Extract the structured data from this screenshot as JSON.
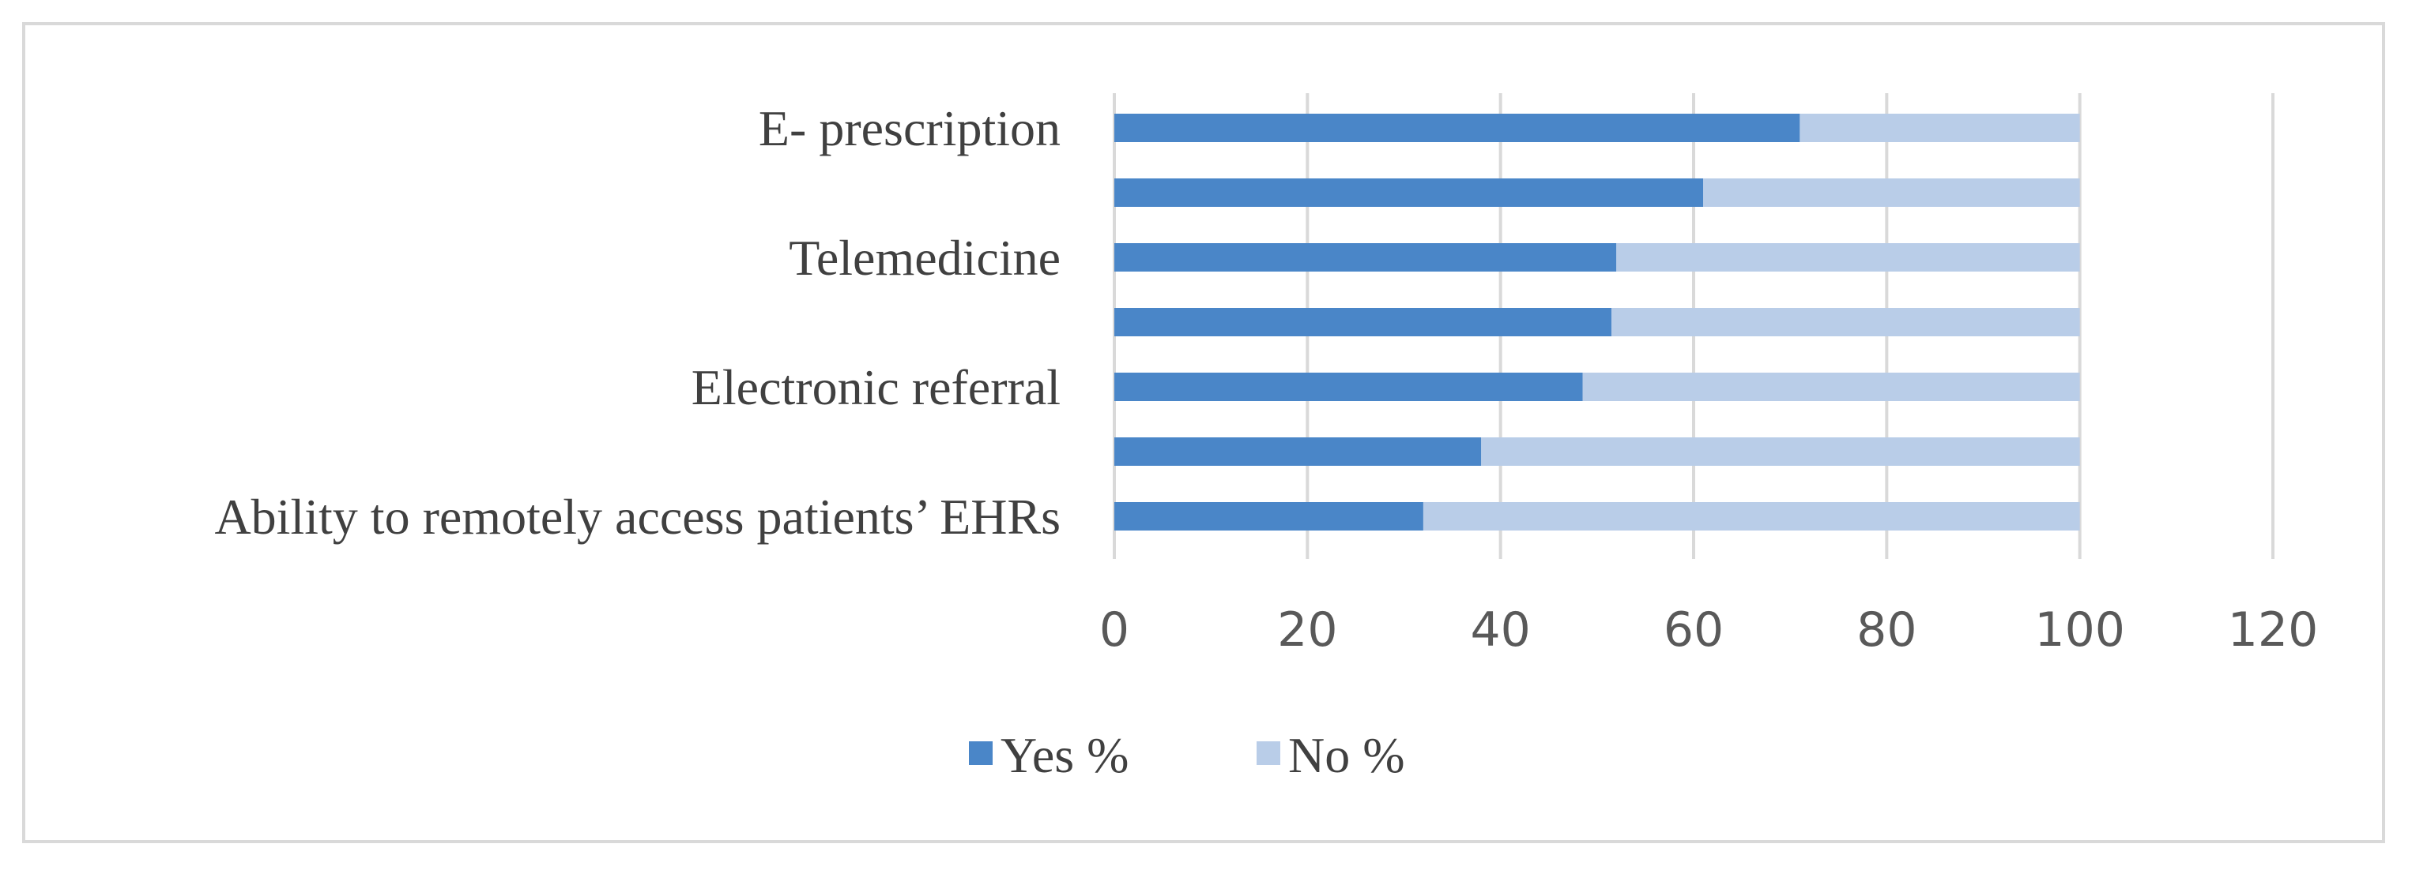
{
  "chart_data": {
    "type": "bar",
    "orientation": "horizontal",
    "stacked": true,
    "categories": [
      "E- prescription",
      "",
      "Telemedicine",
      "",
      "Electronic referral",
      "",
      "Ability to remotely access patients’ EHRs"
    ],
    "series": [
      {
        "name": "Yes %",
        "color": "#4a86c8",
        "values": [
          71,
          61,
          52,
          51.5,
          48.5,
          38,
          32
        ]
      },
      {
        "name": "No %",
        "color": "#b9cde8",
        "values": [
          29,
          39,
          48,
          48.5,
          51.5,
          62,
          68
        ]
      }
    ],
    "xlim": [
      0,
      120
    ],
    "x_ticks": [
      "0",
      "20",
      "40",
      "60",
      "80",
      "100",
      "120"
    ],
    "grid": "vertical",
    "legend": "bottom-center"
  }
}
